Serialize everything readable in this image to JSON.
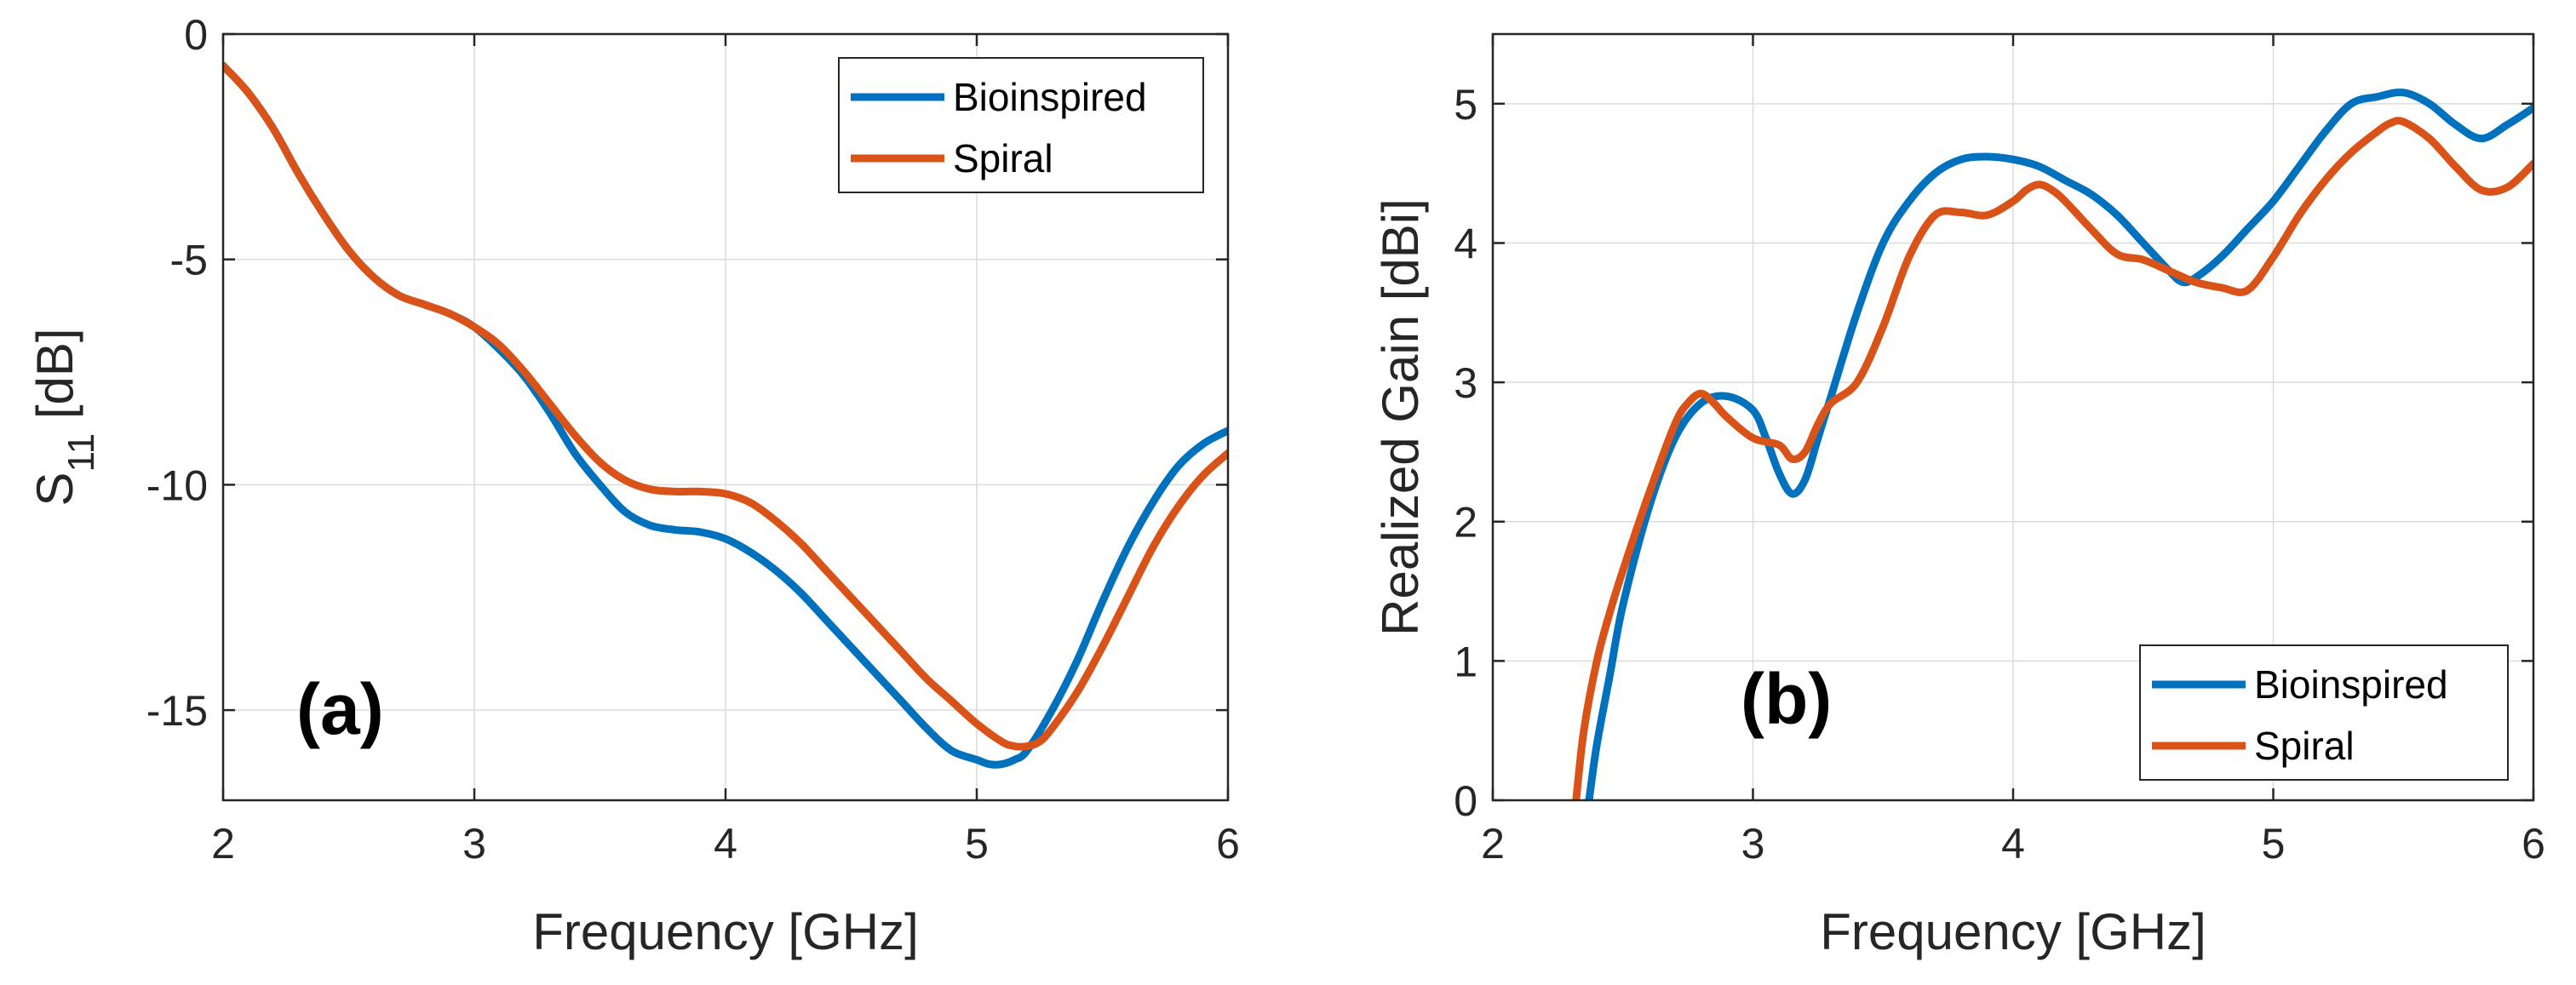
{
  "chart_data": [
    {
      "type": "line",
      "panel_label": "(a)",
      "xlabel": "Frequency [GHz]",
      "ylabel": "S",
      "ylabel_subscript": "11",
      "ylabel_suffix": " [dB]",
      "xlim": [
        2,
        6
      ],
      "ylim": [
        -17,
        0
      ],
      "xticks": [
        2,
        3,
        4,
        5,
        6
      ],
      "yticks": [
        0,
        -5,
        -10,
        -15
      ],
      "grid": true,
      "legend": {
        "position": "top-right",
        "entries": [
          "Bioinspired",
          "Spiral"
        ]
      },
      "series": [
        {
          "name": "Bioinspired",
          "color": "#0072BD",
          "x": [
            2.0,
            2.1,
            2.2,
            2.3,
            2.4,
            2.5,
            2.6,
            2.7,
            2.8,
            2.9,
            3.0,
            3.1,
            3.2,
            3.3,
            3.4,
            3.5,
            3.6,
            3.7,
            3.8,
            3.9,
            4.0,
            4.1,
            4.2,
            4.3,
            4.4,
            4.5,
            4.6,
            4.7,
            4.8,
            4.9,
            5.0,
            5.05,
            5.1,
            5.15,
            5.2,
            5.3,
            5.4,
            5.5,
            5.6,
            5.7,
            5.8,
            5.9,
            6.0
          ],
          "y": [
            -0.7,
            -1.3,
            -2.1,
            -3.1,
            -4.0,
            -4.8,
            -5.4,
            -5.8,
            -6.0,
            -6.2,
            -6.5,
            -7.0,
            -7.6,
            -8.4,
            -9.3,
            -10.0,
            -10.6,
            -10.9,
            -11.0,
            -11.05,
            -11.2,
            -11.5,
            -11.9,
            -12.4,
            -13.0,
            -13.6,
            -14.2,
            -14.8,
            -15.4,
            -15.9,
            -16.1,
            -16.2,
            -16.2,
            -16.1,
            -15.9,
            -15.0,
            -13.9,
            -12.6,
            -11.4,
            -10.4,
            -9.6,
            -9.1,
            -8.8
          ]
        },
        {
          "name": "Spiral",
          "color": "#D95319",
          "x": [
            2.0,
            2.1,
            2.2,
            2.3,
            2.4,
            2.5,
            2.6,
            2.7,
            2.8,
            2.9,
            3.0,
            3.1,
            3.2,
            3.3,
            3.4,
            3.5,
            3.6,
            3.7,
            3.8,
            3.9,
            4.0,
            4.1,
            4.2,
            4.3,
            4.4,
            4.5,
            4.6,
            4.7,
            4.8,
            4.9,
            5.0,
            5.1,
            5.15,
            5.2,
            5.25,
            5.3,
            5.4,
            5.5,
            5.6,
            5.7,
            5.8,
            5.9,
            6.0
          ],
          "y": [
            -0.7,
            -1.3,
            -2.1,
            -3.1,
            -4.0,
            -4.8,
            -5.4,
            -5.8,
            -6.0,
            -6.2,
            -6.5,
            -6.9,
            -7.5,
            -8.2,
            -8.9,
            -9.5,
            -9.9,
            -10.1,
            -10.15,
            -10.15,
            -10.2,
            -10.4,
            -10.8,
            -11.3,
            -11.9,
            -12.5,
            -13.1,
            -13.7,
            -14.3,
            -14.8,
            -15.3,
            -15.7,
            -15.8,
            -15.8,
            -15.7,
            -15.4,
            -14.6,
            -13.6,
            -12.5,
            -11.4,
            -10.5,
            -9.8,
            -9.3
          ]
        }
      ]
    },
    {
      "type": "line",
      "panel_label": "(b)",
      "xlabel": "Frequency [GHz]",
      "ylabel": "Realized Gain [dBi]",
      "xlim": [
        2,
        6
      ],
      "ylim": [
        0,
        5.5
      ],
      "xticks": [
        2,
        3,
        4,
        5,
        6
      ],
      "yticks": [
        0,
        1,
        2,
        3,
        4,
        5
      ],
      "grid": true,
      "legend": {
        "position": "bottom-right",
        "entries": [
          "Bioinspired",
          "Spiral"
        ]
      },
      "series": [
        {
          "name": "Bioinspired",
          "color": "#0072BD",
          "x": [
            2.37,
            2.4,
            2.45,
            2.5,
            2.6,
            2.7,
            2.8,
            2.9,
            3.0,
            3.05,
            3.1,
            3.15,
            3.2,
            3.25,
            3.3,
            3.4,
            3.5,
            3.6,
            3.7,
            3.8,
            3.9,
            4.0,
            4.1,
            4.2,
            4.3,
            4.4,
            4.5,
            4.6,
            4.65,
            4.7,
            4.8,
            4.9,
            5.0,
            5.1,
            5.2,
            5.3,
            5.4,
            5.5,
            5.6,
            5.7,
            5.8,
            5.9,
            6.0
          ],
          "y": [
            0.0,
            0.4,
            0.9,
            1.4,
            2.1,
            2.6,
            2.85,
            2.9,
            2.8,
            2.6,
            2.35,
            2.2,
            2.3,
            2.6,
            2.9,
            3.5,
            4.0,
            4.3,
            4.5,
            4.6,
            4.62,
            4.6,
            4.55,
            4.45,
            4.35,
            4.2,
            4.0,
            3.8,
            3.72,
            3.75,
            3.9,
            4.1,
            4.3,
            4.55,
            4.8,
            5.0,
            5.05,
            5.08,
            5.0,
            4.85,
            4.75,
            4.85,
            4.97
          ]
        },
        {
          "name": "Spiral",
          "color": "#D95319",
          "x": [
            2.32,
            2.35,
            2.4,
            2.45,
            2.5,
            2.6,
            2.7,
            2.75,
            2.8,
            2.85,
            2.9,
            3.0,
            3.1,
            3.15,
            3.2,
            3.25,
            3.3,
            3.4,
            3.5,
            3.6,
            3.7,
            3.8,
            3.9,
            4.0,
            4.05,
            4.1,
            4.15,
            4.2,
            4.3,
            4.4,
            4.5,
            4.6,
            4.7,
            4.8,
            4.9,
            5.0,
            5.1,
            5.2,
            5.3,
            5.4,
            5.45,
            5.5,
            5.6,
            5.7,
            5.8,
            5.9,
            6.0
          ],
          "y": [
            0.0,
            0.5,
            1.0,
            1.35,
            1.65,
            2.2,
            2.7,
            2.85,
            2.92,
            2.85,
            2.75,
            2.6,
            2.55,
            2.45,
            2.5,
            2.7,
            2.85,
            3.0,
            3.4,
            3.9,
            4.2,
            4.22,
            4.2,
            4.3,
            4.38,
            4.42,
            4.38,
            4.3,
            4.1,
            3.92,
            3.88,
            3.8,
            3.72,
            3.68,
            3.66,
            3.9,
            4.2,
            4.45,
            4.65,
            4.8,
            4.86,
            4.87,
            4.75,
            4.55,
            4.38,
            4.4,
            4.57
          ]
        }
      ]
    }
  ]
}
